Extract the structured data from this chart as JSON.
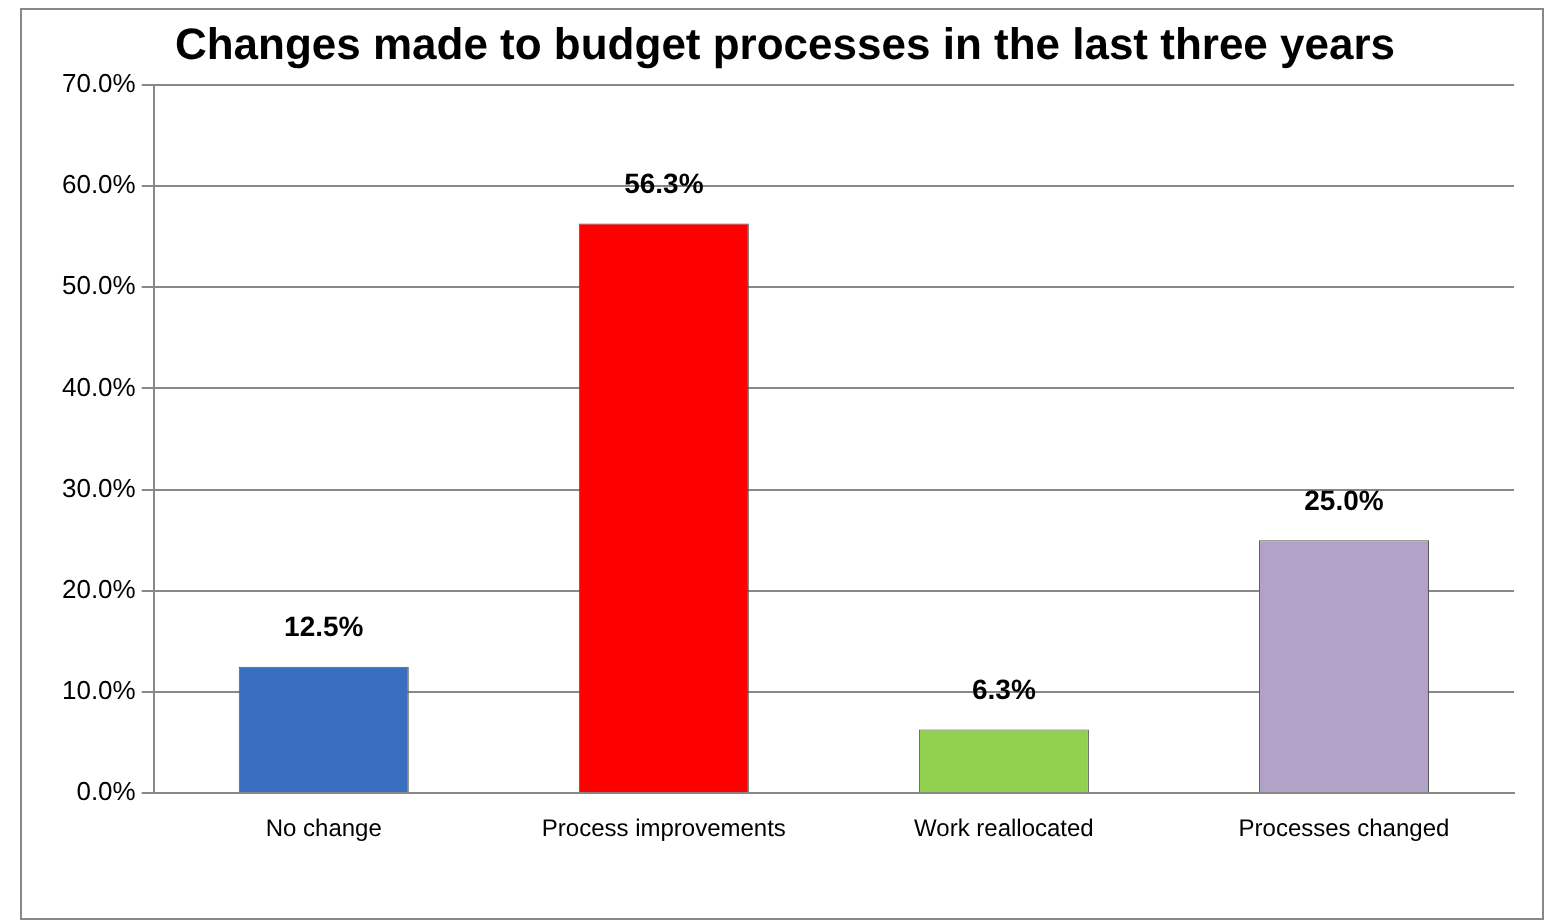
{
  "chart_data": {
    "type": "bar",
    "title": "Changes made to budget processes in the last three years",
    "categories": [
      "No change",
      "Process improvements",
      "Work reallocated",
      "Processes changed"
    ],
    "values": [
      12.5,
      56.3,
      6.3,
      25.0
    ],
    "colors": [
      "#3a6fc0",
      "#ff0000",
      "#92d050",
      "#b3a2c7"
    ],
    "value_labels": [
      "12.5%",
      "56.3%",
      "6.3%",
      "25.0%"
    ],
    "ylim": [
      0,
      70
    ],
    "yticks": [
      {
        "value": 0,
        "label": "0.0%"
      },
      {
        "value": 10,
        "label": "10.0%"
      },
      {
        "value": 20,
        "label": "20.0%"
      },
      {
        "value": 30,
        "label": "30.0%"
      },
      {
        "value": 40,
        "label": "40.0%"
      },
      {
        "value": 50,
        "label": "50.0%"
      },
      {
        "value": 60,
        "label": "60.0%"
      },
      {
        "value": 70,
        "label": "70.0%"
      }
    ],
    "grid": "y",
    "legend": false
  }
}
